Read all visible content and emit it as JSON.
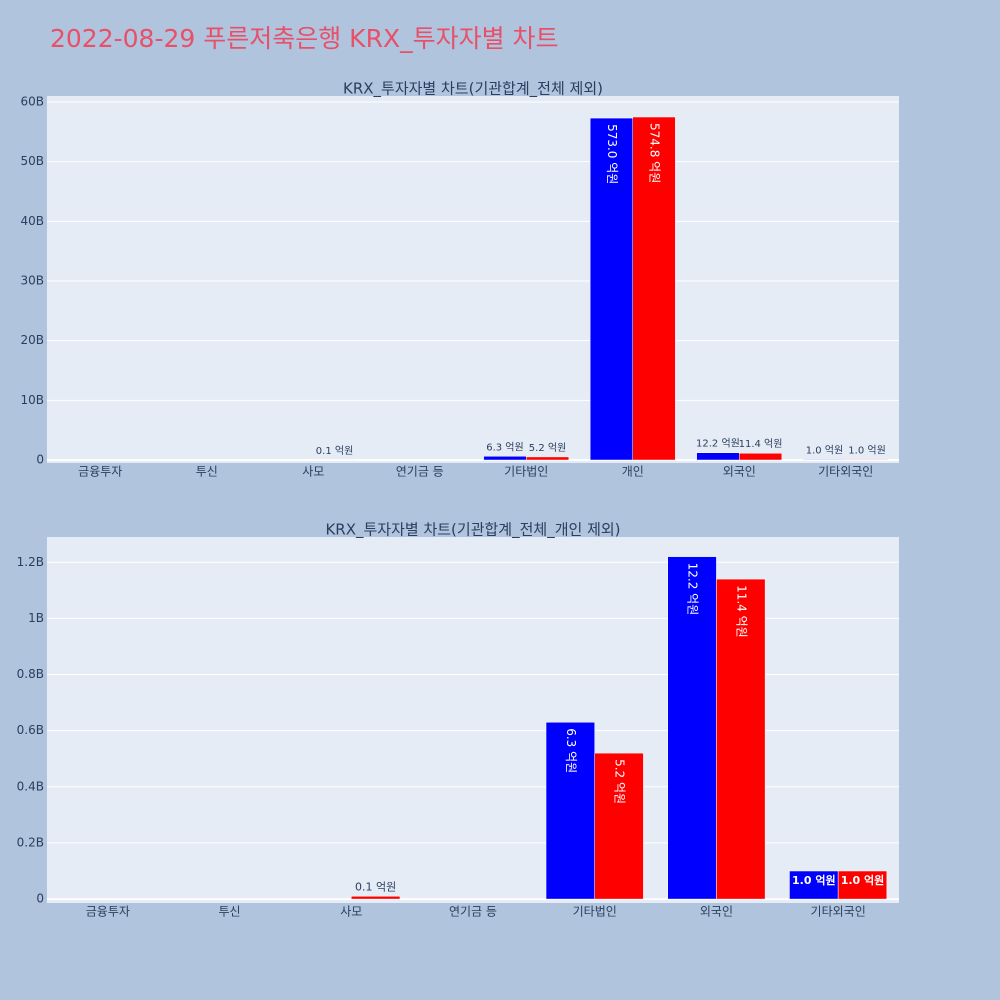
{
  "title": "2022-08-29 푸른저축은행 KRX_투자자별 차트",
  "chart_data": [
    {
      "type": "bar",
      "title": "KRX_투자자별 차트(기관합계_전체 제외)",
      "categories": [
        "금융투자",
        "투신",
        "사모",
        "연기금 등",
        "기타법인",
        "개인",
        "외국인",
        "기타외국인"
      ],
      "series": [
        {
          "color": "#0000ff",
          "values": [
            0,
            0,
            0,
            0,
            630000000,
            57300000000,
            1220000000,
            100000000
          ],
          "value_labels": [
            null,
            null,
            null,
            null,
            "6.3 억원",
            "573.0 억원",
            "12.2 억원",
            "1.0 억원"
          ]
        },
        {
          "color": "#ff0000",
          "values": [
            0,
            0,
            10000000,
            0,
            520000000,
            57480000000,
            1140000000,
            100000000
          ],
          "value_labels": [
            null,
            null,
            "0.1 억원",
            null,
            "5.2 억원",
            "574.8 억원",
            "11.4 억원",
            "1.0 억원"
          ]
        }
      ],
      "ylim": [
        -500000000,
        61000000000
      ],
      "yticks": [
        0,
        {
          "value": 10000000000,
          "label": "10B"
        },
        {
          "value": 20000000000,
          "label": "20B"
        },
        {
          "value": 30000000000,
          "label": "30B"
        },
        {
          "value": 40000000000,
          "label": "40B"
        },
        {
          "value": 50000000000,
          "label": "50B"
        },
        {
          "value": 60000000000,
          "label": "60B"
        }
      ],
      "grid": true
    },
    {
      "type": "bar",
      "title": "KRX_투자자별 차트(기관합계_전체_개인 제외)",
      "categories": [
        "금융투자",
        "투신",
        "사모",
        "연기금 등",
        "기타법인",
        "외국인",
        "기타외국인"
      ],
      "series": [
        {
          "color": "#0000ff",
          "values": [
            0,
            0,
            0,
            0,
            630000000,
            1220000000,
            100000000
          ],
          "value_labels": [
            null,
            null,
            null,
            null,
            "6.3 억원",
            "12.2 억원",
            "1.0 억원"
          ]
        },
        {
          "color": "#ff0000",
          "values": [
            0,
            0,
            10000000,
            0,
            520000000,
            1140000000,
            100000000
          ],
          "value_labels": [
            null,
            null,
            "0.1 억원",
            null,
            "5.2 억원",
            "11.4 억원",
            "1.0 억원"
          ]
        }
      ],
      "ylim": [
        -14000000,
        1290000000
      ],
      "yticks": [
        0,
        {
          "value": 200000000,
          "label": "0.2B"
        },
        {
          "value": 400000000,
          "label": "0.4B"
        },
        {
          "value": 600000000,
          "label": "0.6B"
        },
        {
          "value": 800000000,
          "label": "0.8B"
        },
        {
          "value": 1000000000,
          "label": "1B"
        },
        {
          "value": 1200000000,
          "label": "1.2B"
        }
      ],
      "grid": true
    }
  ]
}
